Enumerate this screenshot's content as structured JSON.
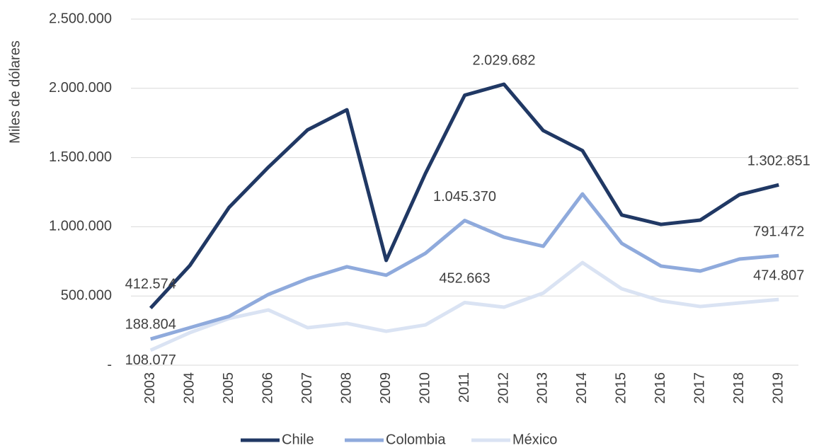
{
  "chart_data": {
    "type": "line",
    "y_label": "Miles de dólares",
    "categories": [
      "2003",
      "2004",
      "2005",
      "2006",
      "2007",
      "2008",
      "2009",
      "2010",
      "2011",
      "2012",
      "2013",
      "2014",
      "2015",
      "2016",
      "2017",
      "2018",
      "2019"
    ],
    "series": [
      {
        "name": "Chile",
        "color": "#203864",
        "values": [
          412574,
          720000,
          1140000,
          1430000,
          1700000,
          1845000,
          757000,
          1385000,
          1950000,
          2029682,
          1695000,
          1550000,
          1085000,
          1017000,
          1048000,
          1232000,
          1302851
        ],
        "value_labels": [
          "412.574",
          null,
          null,
          null,
          null,
          null,
          null,
          null,
          null,
          "2.029.682",
          null,
          null,
          null,
          null,
          null,
          null,
          "1.302.851"
        ]
      },
      {
        "name": "Colombia",
        "color": "#8faadc",
        "values": [
          188804,
          271000,
          353000,
          511000,
          624000,
          711000,
          650000,
          808000,
          1045370,
          925000,
          859000,
          1237000,
          880000,
          716000,
          680000,
          767000,
          791472
        ],
        "value_labels": [
          "188.804",
          null,
          null,
          null,
          null,
          null,
          null,
          null,
          "1.045.370",
          null,
          null,
          null,
          null,
          null,
          null,
          null,
          "791.472"
        ]
      },
      {
        "name": "México",
        "color": "#dae3f3",
        "values": [
          108077,
          235000,
          338000,
          399000,
          271000,
          302000,
          245000,
          291000,
          452663,
          419000,
          521000,
          741000,
          552000,
          465000,
          424000,
          450000,
          474807
        ],
        "value_labels": [
          "108.077",
          null,
          null,
          null,
          null,
          null,
          null,
          null,
          "452.663",
          null,
          null,
          null,
          null,
          null,
          null,
          null,
          "474.807"
        ]
      }
    ],
    "ylim": [
      0,
      2500000
    ],
    "yticks": [
      {
        "value": 0,
        "label": "-"
      },
      {
        "value": 500000,
        "label": "500.000"
      },
      {
        "value": 1000000,
        "label": "1.000.000"
      },
      {
        "value": 1500000,
        "label": "1.500.000"
      },
      {
        "value": 2000000,
        "label": "2.000.000"
      },
      {
        "value": 2500000,
        "label": "2.500.000"
      }
    ],
    "grid": true,
    "legend": "bottom"
  }
}
